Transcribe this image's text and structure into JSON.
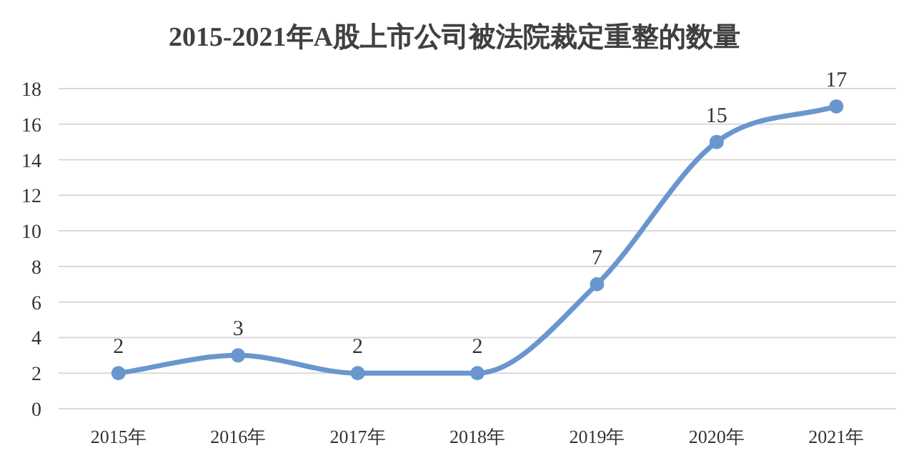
{
  "chart_data": {
    "type": "line",
    "title": "2015-2021年A股上市公司被法院裁定重整的数量",
    "categories": [
      "2015年",
      "2016年",
      "2017年",
      "2018年",
      "2019年",
      "2020年",
      "2021年"
    ],
    "values": [
      2,
      3,
      2,
      2,
      7,
      15,
      17
    ],
    "color": "#6a96cf",
    "ylim": [
      0,
      18
    ],
    "yticks": [
      0,
      2,
      4,
      6,
      8,
      10,
      12,
      14,
      16,
      18
    ],
    "grid": "y",
    "marker": "circle",
    "data_labels": true
  }
}
